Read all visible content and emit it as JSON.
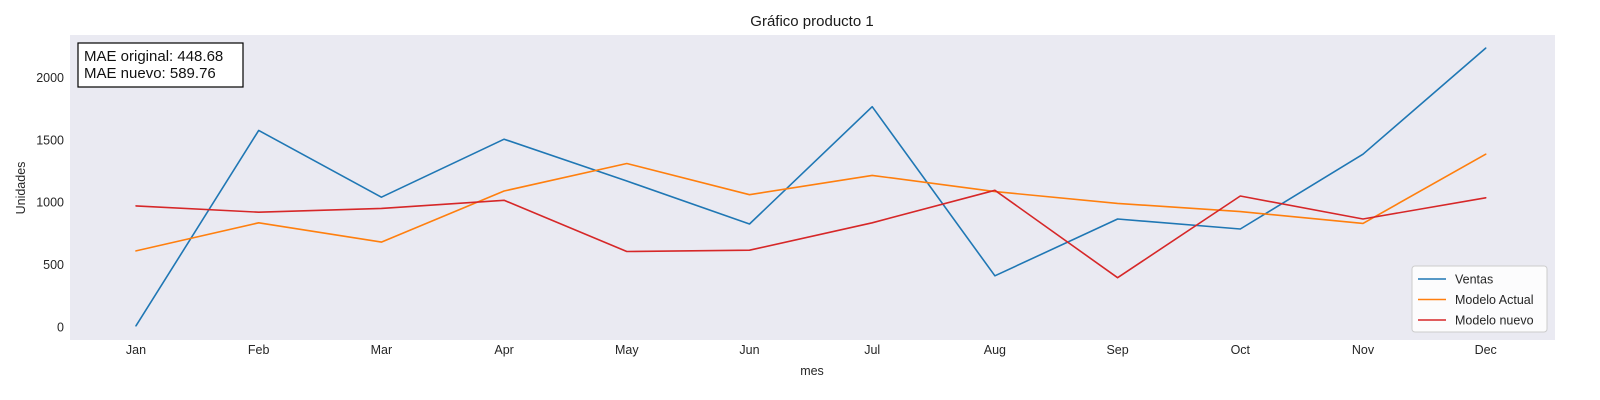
{
  "chart_data": {
    "type": "line",
    "title": "Gráfico producto 1",
    "xlabel": "mes",
    "ylabel": "Unidades",
    "categories": [
      "Jan",
      "Feb",
      "Mar",
      "Apr",
      "May",
      "Jun",
      "Jul",
      "Aug",
      "Sep",
      "Oct",
      "Nov",
      "Dec"
    ],
    "yticks": [
      0,
      500,
      1000,
      1500,
      2000
    ],
    "ylim": [
      -100,
      2300
    ],
    "grid": false,
    "legend_position": "bottom-right",
    "annotation": [
      "MAE original: 448.68",
      "MAE nuevo: 589.76"
    ],
    "series": [
      {
        "name": "Ventas",
        "color": "#1f77b4",
        "values": [
          10,
          1575,
          1040,
          1505,
          1170,
          825,
          1765,
          410,
          865,
          785,
          1385,
          2235
        ]
      },
      {
        "name": "Modelo Actual",
        "color": "#ff7f0e",
        "values": [
          610,
          835,
          680,
          1090,
          1310,
          1060,
          1215,
          1085,
          990,
          925,
          830,
          1385
        ]
      },
      {
        "name": "Modelo nuevo",
        "color": "#d62728",
        "values": [
          970,
          920,
          950,
          1015,
          605,
          615,
          835,
          1095,
          395,
          1050,
          865,
          1035
        ]
      }
    ]
  }
}
